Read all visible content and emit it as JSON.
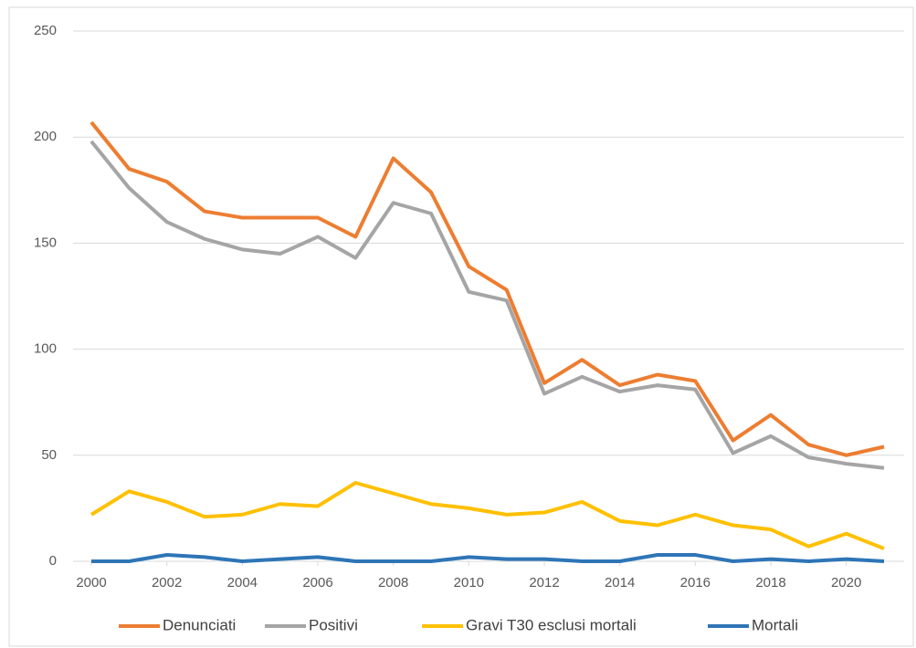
{
  "chart_data": {
    "type": "line",
    "x": [
      2000,
      2001,
      2002,
      2003,
      2004,
      2005,
      2006,
      2007,
      2008,
      2009,
      2010,
      2011,
      2012,
      2013,
      2014,
      2015,
      2016,
      2017,
      2018,
      2019,
      2020,
      2021
    ],
    "series": [
      {
        "name": "Denunciati",
        "color": "#ed7d31",
        "values": [
          207,
          185,
          179,
          165,
          162,
          162,
          162,
          153,
          190,
          174,
          139,
          128,
          84,
          95,
          83,
          88,
          85,
          57,
          69,
          55,
          50,
          54
        ]
      },
      {
        "name": "Positivi",
        "color": "#a5a5a5",
        "values": [
          198,
          176,
          160,
          152,
          147,
          145,
          153,
          143,
          169,
          164,
          127,
          123,
          79,
          87,
          80,
          83,
          81,
          51,
          59,
          49,
          46,
          44
        ]
      },
      {
        "name": "Gravi T30 esclusi mortali",
        "color": "#ffc000",
        "values": [
          22,
          33,
          28,
          21,
          22,
          27,
          26,
          37,
          32,
          27,
          25,
          22,
          23,
          28,
          19,
          17,
          22,
          17,
          15,
          7,
          13,
          6
        ]
      },
      {
        "name": "Mortali",
        "color": "#2e75b6",
        "values": [
          0,
          0,
          3,
          2,
          0,
          1,
          2,
          0,
          0,
          0,
          2,
          1,
          1,
          0,
          0,
          3,
          3,
          0,
          1,
          0,
          1,
          0
        ]
      }
    ],
    "xlim": [
      2000,
      2021
    ],
    "xticks": [
      2000,
      2002,
      2004,
      2006,
      2008,
      2010,
      2012,
      2014,
      2016,
      2018,
      2020
    ],
    "ylim": [
      0,
      250
    ],
    "yticks": [
      0,
      50,
      100,
      150,
      200,
      250
    ],
    "grid": true,
    "legend": "bottom"
  }
}
